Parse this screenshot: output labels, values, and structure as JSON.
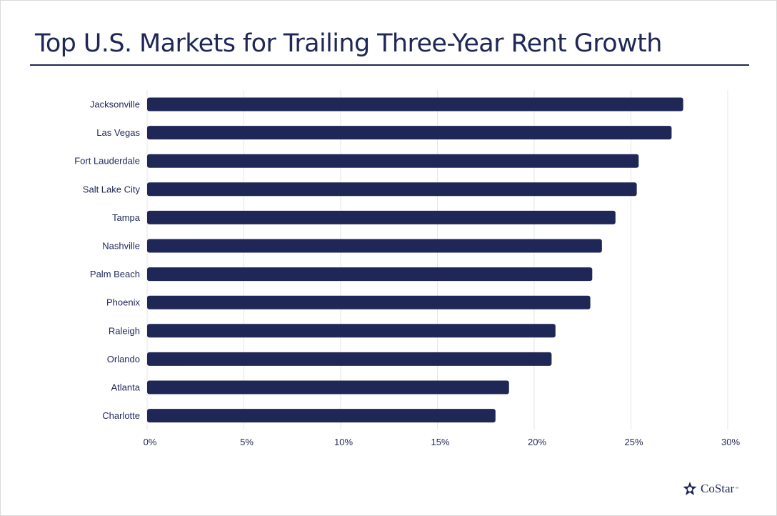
{
  "title": "Top U.S. Markets for Trailing Three-Year Rent Growth",
  "brand": {
    "name": "CoStar",
    "trademark": "™"
  },
  "colors": {
    "bar": "#1f2757",
    "grid": "#e6e6e6",
    "text": "#1f2757"
  },
  "chart_data": {
    "type": "bar",
    "orientation": "horizontal",
    "categories": [
      "Jacksonville",
      "Las Vegas",
      "Fort Lauderdale",
      "Salt Lake City",
      "Tampa",
      "Nashville",
      "Palm Beach",
      "Phoenix",
      "Raleigh",
      "Orlando",
      "Atlanta",
      "Charlotte"
    ],
    "values": [
      27.7,
      27.1,
      25.4,
      25.3,
      24.2,
      23.5,
      23.0,
      22.9,
      21.1,
      20.9,
      18.7,
      18.0
    ],
    "value_unit": "%",
    "xlim": [
      0,
      30
    ],
    "xticks": [
      "0%",
      "5%",
      "10%",
      "15%",
      "20%",
      "25%",
      "30%"
    ],
    "grid": true,
    "legend": false
  }
}
